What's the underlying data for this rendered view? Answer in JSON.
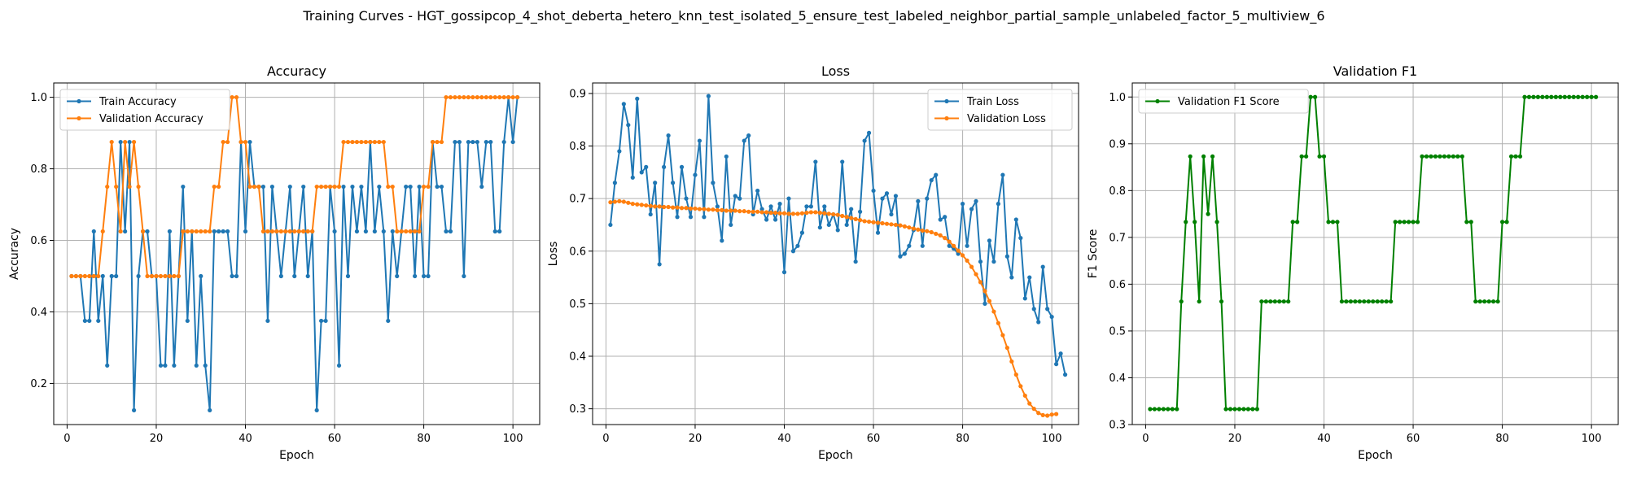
{
  "figure": {
    "suptitle": "Training Curves - HGT_gossipcop_4_shot_deberta_hetero_knn_test_isolated_5_ensure_test_labeled_neighbor_partial_sample_unlabeled_factor_5_multiview_6"
  },
  "colors": {
    "blue": "#1f77b4",
    "orange": "#ff7f0e",
    "green": "#008000",
    "grid": "#b0b0b0"
  },
  "chart_data": [
    {
      "type": "line",
      "title": "Accuracy",
      "xlabel": "Epoch",
      "ylabel": "Accuracy",
      "xlim": [
        -3,
        106
      ],
      "ylim": [
        0.085,
        1.04
      ],
      "xticks": [
        0,
        20,
        40,
        60,
        80,
        100
      ],
      "yticks": [
        0.2,
        0.4,
        0.6,
        0.8,
        1.0
      ],
      "ytick_labels": [
        "0.2",
        "0.4",
        "0.6",
        "0.8",
        "1.0"
      ],
      "grid": true,
      "legend_position": "upper-left",
      "series": [
        {
          "name": "Train Accuracy",
          "color": "#1f77b4",
          "values": [
            0.5,
            0.5,
            0.5,
            0.375,
            0.375,
            0.625,
            0.375,
            0.5,
            0.25,
            0.5,
            0.5,
            0.875,
            0.625,
            0.875,
            0.125,
            0.5,
            0.625,
            0.625,
            0.5,
            0.5,
            0.25,
            0.25,
            0.625,
            0.25,
            0.5,
            0.75,
            0.375,
            0.625,
            0.25,
            0.5,
            0.25,
            0.125,
            0.625,
            0.625,
            0.625,
            0.625,
            0.5,
            0.5,
            0.875,
            0.625,
            0.875,
            0.75,
            0.75,
            0.75,
            0.375,
            0.75,
            0.625,
            0.5,
            0.625,
            0.75,
            0.5,
            0.625,
            0.75,
            0.5,
            0.625,
            0.125,
            0.375,
            0.375,
            0.75,
            0.625,
            0.25,
            0.75,
            0.5,
            0.75,
            0.625,
            0.75,
            0.625,
            0.875,
            0.625,
            0.75,
            0.625,
            0.375,
            0.625,
            0.5,
            0.625,
            0.75,
            0.75,
            0.5,
            0.75,
            0.5,
            0.5,
            0.875,
            0.75,
            0.75,
            0.625,
            0.625,
            0.875,
            0.875,
            0.5,
            0.875,
            0.875,
            0.875,
            0.75,
            0.875,
            0.875,
            0.625,
            0.625,
            0.875,
            1.0,
            0.875,
            1.0
          ]
        },
        {
          "name": "Validation Accuracy",
          "color": "#ff7f0e",
          "values": [
            0.5,
            0.5,
            0.5,
            0.5,
            0.5,
            0.5,
            0.5,
            0.625,
            0.75,
            0.875,
            0.75,
            0.625,
            0.875,
            0.75,
            0.875,
            0.75,
            0.625,
            0.5,
            0.5,
            0.5,
            0.5,
            0.5,
            0.5,
            0.5,
            0.5,
            0.625,
            0.625,
            0.625,
            0.625,
            0.625,
            0.625,
            0.625,
            0.75,
            0.75,
            0.875,
            0.875,
            1.0,
            1.0,
            0.875,
            0.875,
            0.75,
            0.75,
            0.75,
            0.625,
            0.625,
            0.625,
            0.625,
            0.625,
            0.625,
            0.625,
            0.625,
            0.625,
            0.625,
            0.625,
            0.625,
            0.75,
            0.75,
            0.75,
            0.75,
            0.75,
            0.75,
            0.875,
            0.875,
            0.875,
            0.875,
            0.875,
            0.875,
            0.875,
            0.875,
            0.875,
            0.875,
            0.75,
            0.75,
            0.625,
            0.625,
            0.625,
            0.625,
            0.625,
            0.625,
            0.75,
            0.75,
            0.875,
            0.875,
            0.875,
            1.0,
            1.0,
            1.0,
            1.0,
            1.0,
            1.0,
            1.0,
            1.0,
            1.0,
            1.0,
            1.0,
            1.0,
            1.0,
            1.0,
            1.0,
            1.0,
            1.0
          ]
        }
      ]
    },
    {
      "type": "line",
      "title": "Loss",
      "xlabel": "Epoch",
      "ylabel": "Loss",
      "xlim": [
        -3,
        106
      ],
      "ylim": [
        0.27,
        0.92
      ],
      "xticks": [
        0,
        20,
        40,
        60,
        80,
        100
      ],
      "yticks": [
        0.3,
        0.4,
        0.5,
        0.6,
        0.7,
        0.8,
        0.9
      ],
      "ytick_labels": [
        "0.3",
        "0.4",
        "0.5",
        "0.6",
        "0.7",
        "0.8",
        "0.9"
      ],
      "grid": true,
      "legend_position": "upper-right",
      "series": [
        {
          "name": "Train Loss",
          "color": "#1f77b4",
          "values": [
            0.65,
            0.73,
            0.79,
            0.88,
            0.84,
            0.74,
            0.89,
            0.75,
            0.76,
            0.67,
            0.73,
            0.575,
            0.76,
            0.82,
            0.73,
            0.665,
            0.76,
            0.7,
            0.665,
            0.745,
            0.81,
            0.665,
            0.895,
            0.73,
            0.685,
            0.62,
            0.78,
            0.65,
            0.705,
            0.7,
            0.81,
            0.82,
            0.67,
            0.715,
            0.68,
            0.66,
            0.685,
            0.66,
            0.69,
            0.56,
            0.7,
            0.6,
            0.61,
            0.635,
            0.685,
            0.685,
            0.77,
            0.645,
            0.685,
            0.65,
            0.67,
            0.64,
            0.77,
            0.65,
            0.68,
            0.58,
            0.675,
            0.81,
            0.825,
            0.715,
            0.635,
            0.7,
            0.71,
            0.67,
            0.705,
            0.59,
            0.595,
            0.61,
            0.64,
            0.695,
            0.61,
            0.7,
            0.735,
            0.745,
            0.66,
            0.665,
            0.61,
            0.605,
            0.595,
            0.69,
            0.61,
            0.68,
            0.695,
            0.58,
            0.5,
            0.62,
            0.58,
            0.69,
            0.745,
            0.59,
            0.55,
            0.66,
            0.625,
            0.51,
            0.55,
            0.49,
            0.465,
            0.57,
            0.49,
            0.475,
            0.385,
            0.405,
            0.365
          ]
        },
        {
          "name": "Validation Loss",
          "color": "#ff7f0e",
          "values": [
            0.693,
            0.694,
            0.695,
            0.694,
            0.692,
            0.69,
            0.689,
            0.688,
            0.687,
            0.686,
            0.685,
            0.685,
            0.684,
            0.684,
            0.683,
            0.683,
            0.682,
            0.682,
            0.681,
            0.681,
            0.68,
            0.68,
            0.679,
            0.679,
            0.678,
            0.678,
            0.677,
            0.677,
            0.677,
            0.676,
            0.676,
            0.675,
            0.675,
            0.675,
            0.674,
            0.674,
            0.673,
            0.673,
            0.672,
            0.672,
            0.671,
            0.671,
            0.671,
            0.672,
            0.673,
            0.674,
            0.674,
            0.673,
            0.672,
            0.671,
            0.67,
            0.669,
            0.667,
            0.665,
            0.663,
            0.661,
            0.659,
            0.657,
            0.656,
            0.655,
            0.654,
            0.653,
            0.652,
            0.651,
            0.65,
            0.649,
            0.647,
            0.645,
            0.643,
            0.641,
            0.639,
            0.638,
            0.636,
            0.633,
            0.63,
            0.625,
            0.618,
            0.61,
            0.601,
            0.592,
            0.582,
            0.57,
            0.556,
            0.541,
            0.524,
            0.505,
            0.485,
            0.463,
            0.44,
            0.416,
            0.39,
            0.365,
            0.343,
            0.325,
            0.31,
            0.3,
            0.292,
            0.288,
            0.287,
            0.289,
            0.29
          ]
        }
      ]
    },
    {
      "type": "line",
      "title": "Validation F1",
      "xlabel": "Epoch",
      "ylabel": "F1 Score",
      "xlim": [
        -3,
        106
      ],
      "ylim": [
        0.3,
        1.03
      ],
      "xticks": [
        0,
        20,
        40,
        60,
        80,
        100
      ],
      "yticks": [
        0.3,
        0.4,
        0.5,
        0.6,
        0.7,
        0.8,
        0.9,
        1.0
      ],
      "ytick_labels": [
        "0.3",
        "0.4",
        "0.5",
        "0.6",
        "0.7",
        "0.8",
        "0.9",
        "1.0"
      ],
      "grid": true,
      "legend_position": "upper-left",
      "series": [
        {
          "name": "Validation F1 Score",
          "color": "#008000",
          "values": [
            0.333,
            0.333,
            0.333,
            0.333,
            0.333,
            0.333,
            0.333,
            0.563,
            0.733,
            0.873,
            0.733,
            0.563,
            0.873,
            0.75,
            0.873,
            0.733,
            0.563,
            0.333,
            0.333,
            0.333,
            0.333,
            0.333,
            0.333,
            0.333,
            0.333,
            0.563,
            0.563,
            0.563,
            0.563,
            0.563,
            0.563,
            0.563,
            0.733,
            0.733,
            0.873,
            0.873,
            1.0,
            1.0,
            0.873,
            0.873,
            0.733,
            0.733,
            0.733,
            0.563,
            0.563,
            0.563,
            0.563,
            0.563,
            0.563,
            0.563,
            0.563,
            0.563,
            0.563,
            0.563,
            0.563,
            0.733,
            0.733,
            0.733,
            0.733,
            0.733,
            0.733,
            0.873,
            0.873,
            0.873,
            0.873,
            0.873,
            0.873,
            0.873,
            0.873,
            0.873,
            0.873,
            0.733,
            0.733,
            0.563,
            0.563,
            0.563,
            0.563,
            0.563,
            0.563,
            0.733,
            0.733,
            0.873,
            0.873,
            0.873,
            1.0,
            1.0,
            1.0,
            1.0,
            1.0,
            1.0,
            1.0,
            1.0,
            1.0,
            1.0,
            1.0,
            1.0,
            1.0,
            1.0,
            1.0,
            1.0,
            1.0
          ]
        }
      ]
    }
  ]
}
